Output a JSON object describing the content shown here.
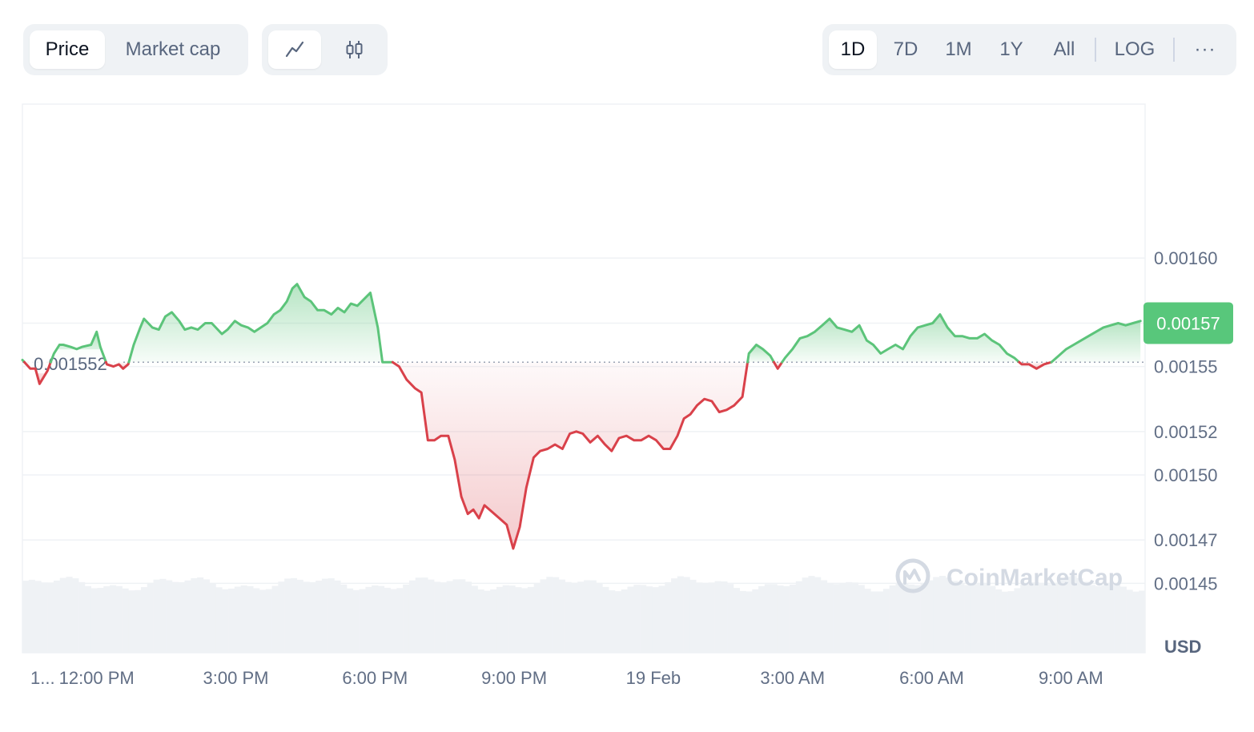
{
  "toolbar": {
    "metric_options": [
      "Price",
      "Market cap"
    ],
    "metric_selected": "Price",
    "chart_types": [
      {
        "icon": "line-chart-icon",
        "selected": true
      },
      {
        "icon": "candlestick-chart-icon",
        "selected": false
      }
    ],
    "ranges": [
      "1D",
      "7D",
      "1M",
      "1Y",
      "All"
    ],
    "range_selected": "1D",
    "log_label": "LOG",
    "more_label": "···"
  },
  "colors": {
    "up": "#16c784",
    "up_line": "#5cc47a",
    "down_line": "#d9414a",
    "grid": "#eff2f5",
    "volume": "#eff2f5",
    "badge": "#58c77b"
  },
  "chart_data": {
    "type": "area",
    "reference_price": 0.001552,
    "reference_label": "0.001552",
    "current_price": 0.00157,
    "current_label": "0.00157",
    "ylim": [
      0.001418,
      0.001671
    ],
    "y_ticks": [
      {
        "value": 0.0016,
        "label": "0.00160"
      },
      {
        "value": 0.00157,
        "label": ""
      },
      {
        "value": 0.00155,
        "label": "0.00155"
      },
      {
        "value": 0.00152,
        "label": "0.00152"
      },
      {
        "value": 0.0015,
        "label": "0.00150"
      },
      {
        "value": 0.00147,
        "label": "0.00147"
      },
      {
        "value": 0.00145,
        "label": "0.00145"
      }
    ],
    "x_range": [
      10.4,
      34.6
    ],
    "x_ticks": [
      {
        "t": 10.4,
        "label": "1..."
      },
      {
        "t": 12,
        "label": "12:00 PM"
      },
      {
        "t": 15,
        "label": "3:00 PM"
      },
      {
        "t": 18,
        "label": "6:00 PM"
      },
      {
        "t": 21,
        "label": "9:00 PM"
      },
      {
        "t": 24,
        "label": "19 Feb"
      },
      {
        "t": 27,
        "label": "3:00 AM"
      },
      {
        "t": 30,
        "label": "6:00 AM"
      },
      {
        "t": 33,
        "label": "9:00 AM"
      }
    ],
    "ylabel": "USD",
    "watermark": "CoinMarketCap",
    "series": [
      {
        "points": [
          [
            10.4,
            0.001553
          ],
          [
            10.57,
            0.001549
          ],
          [
            10.68,
            0.001549
          ],
          [
            10.77,
            0.001542
          ],
          [
            10.94,
            0.001548
          ],
          [
            11.08,
            0.001556
          ],
          [
            11.2,
            0.00156
          ],
          [
            11.28,
            0.00156
          ],
          [
            11.44,
            0.001559
          ],
          [
            11.57,
            0.001558
          ],
          [
            11.68,
            0.001559
          ],
          [
            11.88,
            0.00156
          ],
          [
            12.0,
            0.001566
          ],
          [
            12.08,
            0.001559
          ],
          [
            12.22,
            0.001551
          ],
          [
            12.36,
            0.00155
          ],
          [
            12.48,
            0.001551
          ],
          [
            12.57,
            0.001549
          ],
          [
            12.68,
            0.001551
          ],
          [
            12.8,
            0.00156
          ],
          [
            12.94,
            0.001568
          ],
          [
            13.02,
            0.001572
          ],
          [
            13.2,
            0.001568
          ],
          [
            13.34,
            0.001567
          ],
          [
            13.48,
            0.001573
          ],
          [
            13.62,
            0.001575
          ],
          [
            13.78,
            0.001571
          ],
          [
            13.9,
            0.001567
          ],
          [
            14.04,
            0.001568
          ],
          [
            14.18,
            0.001567
          ],
          [
            14.34,
            0.00157
          ],
          [
            14.48,
            0.00157
          ],
          [
            14.7,
            0.001565
          ],
          [
            14.82,
            0.001567
          ],
          [
            14.98,
            0.001571
          ],
          [
            15.12,
            0.001569
          ],
          [
            15.26,
            0.001568
          ],
          [
            15.4,
            0.001566
          ],
          [
            15.54,
            0.001568
          ],
          [
            15.68,
            0.00157
          ],
          [
            15.82,
            0.001574
          ],
          [
            15.96,
            0.001576
          ],
          [
            16.1,
            0.00158
          ],
          [
            16.22,
            0.001586
          ],
          [
            16.32,
            0.001588
          ],
          [
            16.48,
            0.001582
          ],
          [
            16.62,
            0.00158
          ],
          [
            16.76,
            0.001576
          ],
          [
            16.9,
            0.001576
          ],
          [
            17.06,
            0.001574
          ],
          [
            17.2,
            0.001577
          ],
          [
            17.34,
            0.001575
          ],
          [
            17.48,
            0.001579
          ],
          [
            17.62,
            0.001578
          ],
          [
            17.76,
            0.001581
          ],
          [
            17.9,
            0.001584
          ],
          [
            18.06,
            0.001568
          ],
          [
            18.16,
            0.001552
          ],
          [
            18.26,
            0.001552
          ],
          [
            18.38,
            0.001552
          ],
          [
            18.52,
            0.00155
          ],
          [
            18.68,
            0.001544
          ],
          [
            18.86,
            0.00154
          ],
          [
            19.0,
            0.001538
          ],
          [
            19.14,
            0.001516
          ],
          [
            19.28,
            0.001516
          ],
          [
            19.42,
            0.001518
          ],
          [
            19.58,
            0.001518
          ],
          [
            19.72,
            0.001507
          ],
          [
            19.86,
            0.00149
          ],
          [
            20.0,
            0.001482
          ],
          [
            20.12,
            0.001484
          ],
          [
            20.24,
            0.00148
          ],
          [
            20.36,
            0.001486
          ],
          [
            20.52,
            0.001483
          ],
          [
            20.68,
            0.00148
          ],
          [
            20.84,
            0.001477
          ],
          [
            20.98,
            0.001466
          ],
          [
            21.12,
            0.001476
          ],
          [
            21.26,
            0.001494
          ],
          [
            21.42,
            0.001508
          ],
          [
            21.56,
            0.001511
          ],
          [
            21.72,
            0.001512
          ],
          [
            21.88,
            0.001514
          ],
          [
            22.04,
            0.001512
          ],
          [
            22.2,
            0.001519
          ],
          [
            22.34,
            0.00152
          ],
          [
            22.48,
            0.001519
          ],
          [
            22.64,
            0.001515
          ],
          [
            22.8,
            0.001518
          ],
          [
            22.96,
            0.001514
          ],
          [
            23.1,
            0.001511
          ],
          [
            23.26,
            0.001517
          ],
          [
            23.42,
            0.001518
          ],
          [
            23.58,
            0.001516
          ],
          [
            23.74,
            0.001516
          ],
          [
            23.9,
            0.001518
          ],
          [
            24.06,
            0.001516
          ],
          [
            24.22,
            0.001512
          ],
          [
            24.36,
            0.001512
          ],
          [
            24.52,
            0.001518
          ],
          [
            24.66,
            0.001526
          ],
          [
            24.8,
            0.001528
          ],
          [
            24.94,
            0.001532
          ],
          [
            25.1,
            0.001535
          ],
          [
            25.26,
            0.001534
          ],
          [
            25.42,
            0.001529
          ],
          [
            25.58,
            0.00153
          ],
          [
            25.74,
            0.001532
          ],
          [
            25.92,
            0.001536
          ],
          [
            26.06,
            0.001556
          ],
          [
            26.22,
            0.00156
          ],
          [
            26.36,
            0.001558
          ],
          [
            26.52,
            0.001555
          ],
          [
            26.68,
            0.001549
          ],
          [
            26.84,
            0.001554
          ],
          [
            27.0,
            0.001558
          ],
          [
            27.16,
            0.001563
          ],
          [
            27.32,
            0.001564
          ],
          [
            27.48,
            0.001566
          ],
          [
            27.64,
            0.001569
          ],
          [
            27.8,
            0.001572
          ],
          [
            27.96,
            0.001568
          ],
          [
            28.12,
            0.001567
          ],
          [
            28.28,
            0.001566
          ],
          [
            28.44,
            0.001569
          ],
          [
            28.6,
            0.001562
          ],
          [
            28.74,
            0.00156
          ],
          [
            28.9,
            0.001556
          ],
          [
            29.06,
            0.001558
          ],
          [
            29.22,
            0.00156
          ],
          [
            29.38,
            0.001558
          ],
          [
            29.54,
            0.001564
          ],
          [
            29.7,
            0.001568
          ],
          [
            29.86,
            0.001569
          ],
          [
            30.02,
            0.00157
          ],
          [
            30.18,
            0.001574
          ],
          [
            30.34,
            0.001568
          ],
          [
            30.5,
            0.001564
          ],
          [
            30.66,
            0.001564
          ],
          [
            30.82,
            0.001563
          ],
          [
            30.98,
            0.001563
          ],
          [
            31.14,
            0.001565
          ],
          [
            31.3,
            0.001562
          ],
          [
            31.46,
            0.00156
          ],
          [
            31.62,
            0.001556
          ],
          [
            31.78,
            0.001554
          ],
          [
            31.94,
            0.001551
          ],
          [
            32.1,
            0.001551
          ],
          [
            32.26,
            0.001549
          ],
          [
            32.42,
            0.001551
          ],
          [
            32.58,
            0.001552
          ],
          [
            32.74,
            0.001555
          ],
          [
            32.9,
            0.001558
          ],
          [
            33.06,
            0.00156
          ],
          [
            33.22,
            0.001562
          ],
          [
            33.38,
            0.001564
          ],
          [
            33.54,
            0.001566
          ],
          [
            33.7,
            0.001568
          ],
          [
            33.86,
            0.001569
          ],
          [
            34.02,
            0.00157
          ],
          [
            34.18,
            0.001569
          ],
          [
            34.34,
            0.00157
          ],
          [
            34.5,
            0.001571
          ]
        ]
      }
    ]
  }
}
